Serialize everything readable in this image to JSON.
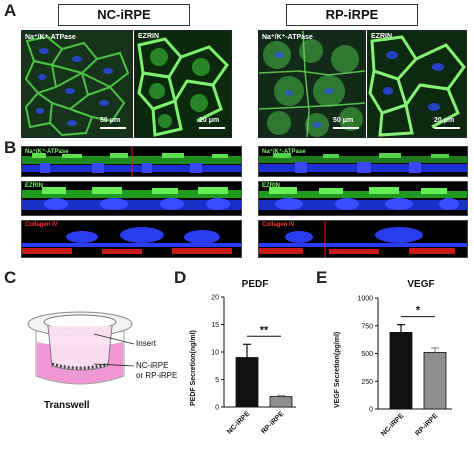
{
  "panels": {
    "a": "A",
    "b": "B",
    "c": "C",
    "d": "D",
    "e": "E"
  },
  "groups": {
    "left": "NC-iRPE",
    "right": "RP-iRPE"
  },
  "micrographs": [
    {
      "label": "Na⁺/K⁺-ATPase",
      "scale": "50 μm"
    },
    {
      "label": "EZRIN",
      "scale": "20 μm"
    },
    {
      "label": "Na⁺/K⁺-ATPase",
      "scale": "50 μm"
    },
    {
      "label": "EZRIN",
      "scale": "20 μm"
    }
  ],
  "strips": {
    "left": [
      "Na⁺/K⁺-ATPase",
      "EZRIN",
      "Collagen IV"
    ],
    "right": [
      "Na⁺/K⁺-ATPase",
      "EZRIN",
      "Collagen IV"
    ]
  },
  "diagram": {
    "insert": "Insert",
    "cells_line1": "NC-iRPE",
    "cells_line2": "or RP-iRPE",
    "caption": "Transwell"
  },
  "colors": {
    "bar_nc": "#111111",
    "bar_rp": "#8e8e8e",
    "green": "#3ec83a",
    "blue": "#2b3cff",
    "red": "#e02020",
    "pink": "#f08cd0"
  },
  "chart_data": [
    {
      "type": "bar",
      "title": "PEDF",
      "ylabel": "PEDF Secretion(ng/ml)",
      "categories": [
        "NC-iRPE",
        "RP-iRPE"
      ],
      "values": [
        9.0,
        1.9
      ],
      "errors": [
        2.4,
        0.2
      ],
      "ylim": [
        0,
        20
      ],
      "yticks": [
        "0",
        "5",
        "10",
        "15",
        "20"
      ],
      "significance": "**"
    },
    {
      "type": "bar",
      "title": "VEGF",
      "ylabel": "VEGF Secretion(pg/ml)",
      "categories": [
        "NC-iRPE",
        "RP-iRPE"
      ],
      "values": [
        690,
        510
      ],
      "errors": [
        70,
        40
      ],
      "ylim": [
        0,
        1000
      ],
      "yticks": [
        "0",
        "250",
        "500",
        "750",
        "1000"
      ],
      "significance": "*"
    }
  ]
}
